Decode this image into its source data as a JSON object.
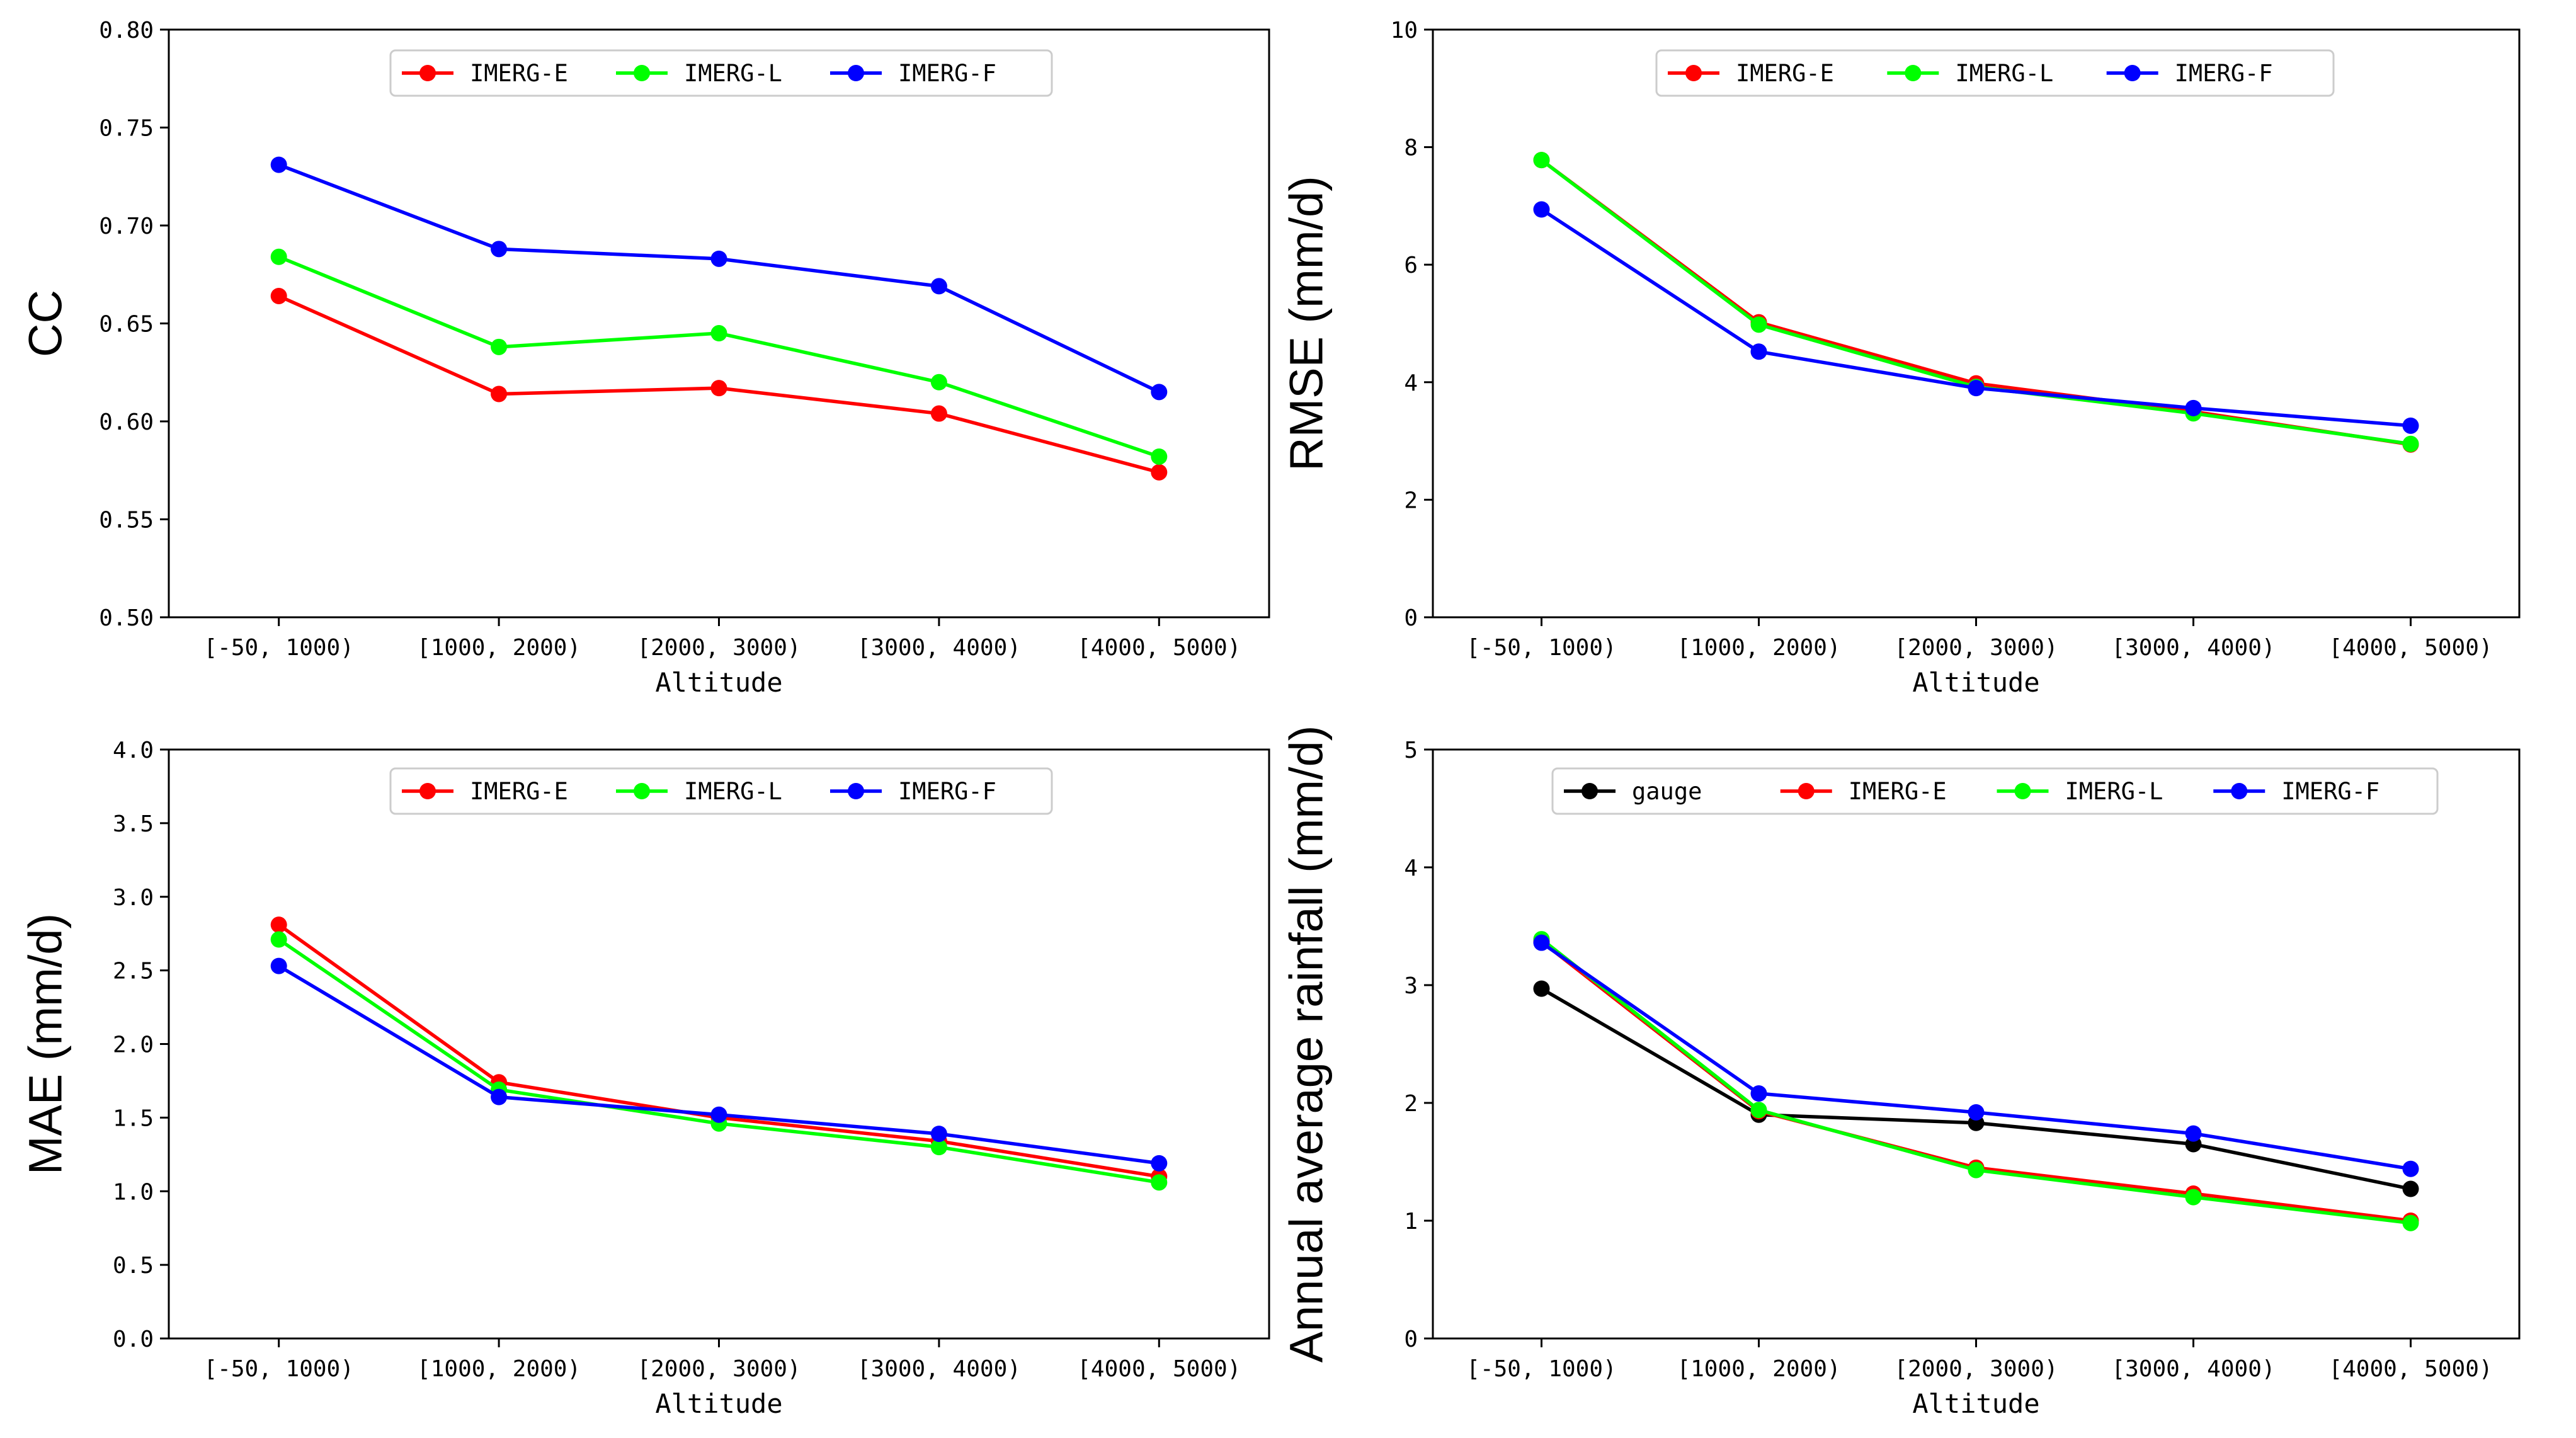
{
  "chart_data": [
    {
      "type": "line",
      "id": "cc",
      "title": "",
      "xlabel": "Altitude",
      "ylabel": "CC",
      "categories": [
        "[-50, 1000)",
        "[1000, 2000)",
        "[2000, 3000)",
        "[3000, 4000)",
        "[4000, 5000)"
      ],
      "ylim": [
        0.5,
        0.8
      ],
      "yticks": [
        "0.50",
        "0.55",
        "0.60",
        "0.65",
        "0.70",
        "0.75",
        "0.80"
      ],
      "legend_position": "top-center",
      "series": [
        {
          "name": "IMERG-E",
          "color": "#ff0000",
          "values": [
            0.664,
            0.614,
            0.617,
            0.604,
            0.574
          ]
        },
        {
          "name": "IMERG-L",
          "color": "#00ff00",
          "values": [
            0.684,
            0.638,
            0.645,
            0.62,
            0.582
          ]
        },
        {
          "name": "IMERG-F",
          "color": "#0000ff",
          "values": [
            0.731,
            0.688,
            0.683,
            0.669,
            0.615
          ]
        }
      ]
    },
    {
      "type": "line",
      "id": "rmse",
      "title": "",
      "xlabel": "Altitude",
      "ylabel": "RMSE (mm/d)",
      "categories": [
        "[-50, 1000)",
        "[1000, 2000)",
        "[2000, 3000)",
        "[3000, 4000)",
        "[4000, 5000)"
      ],
      "ylim": [
        0,
        10
      ],
      "yticks": [
        "0",
        "2",
        "4",
        "6",
        "8",
        "10"
      ],
      "legend_position": "top-center",
      "series": [
        {
          "name": "IMERG-E",
          "color": "#ff0000",
          "values": [
            7.78,
            5.02,
            3.98,
            3.5,
            2.94
          ]
        },
        {
          "name": "IMERG-L",
          "color": "#00ff00",
          "values": [
            7.78,
            4.98,
            3.92,
            3.47,
            2.95
          ]
        },
        {
          "name": "IMERG-F",
          "color": "#0000ff",
          "values": [
            6.94,
            4.52,
            3.9,
            3.56,
            3.26
          ]
        }
      ]
    },
    {
      "type": "line",
      "id": "mae",
      "title": "",
      "xlabel": "Altitude",
      "ylabel": "MAE (mm/d)",
      "categories": [
        "[-50, 1000)",
        "[1000, 2000)",
        "[2000, 3000)",
        "[3000, 4000)",
        "[4000, 5000)"
      ],
      "ylim": [
        0,
        4
      ],
      "yticks": [
        "0.0",
        "0.5",
        "1.0",
        "1.5",
        "2.0",
        "2.5",
        "3.0",
        "3.5",
        "4.0"
      ],
      "legend_position": "top-center",
      "series": [
        {
          "name": "IMERG-E",
          "color": "#ff0000",
          "values": [
            2.81,
            1.74,
            1.5,
            1.34,
            1.1
          ]
        },
        {
          "name": "IMERG-L",
          "color": "#00ff00",
          "values": [
            2.71,
            1.69,
            1.46,
            1.3,
            1.06
          ]
        },
        {
          "name": "IMERG-F",
          "color": "#0000ff",
          "values": [
            2.53,
            1.64,
            1.52,
            1.39,
            1.19
          ]
        }
      ]
    },
    {
      "type": "line",
      "id": "rainfall",
      "title": "",
      "xlabel": "Altitude",
      "ylabel": "Annual average rainfall (mm/d)",
      "categories": [
        "[-50, 1000)",
        "[1000, 2000)",
        "[2000, 3000)",
        "[3000, 4000)",
        "[4000, 5000)"
      ],
      "ylim": [
        0,
        5
      ],
      "yticks": [
        "0",
        "1",
        "2",
        "3",
        "4",
        "5"
      ],
      "legend_position": "top-center",
      "series": [
        {
          "name": "gauge",
          "color": "#000000",
          "values": [
            2.97,
            1.9,
            1.83,
            1.65,
            1.27
          ]
        },
        {
          "name": "IMERG-E",
          "color": "#ff0000",
          "values": [
            3.37,
            1.93,
            1.45,
            1.23,
            1.0
          ]
        },
        {
          "name": "IMERG-L",
          "color": "#00ff00",
          "values": [
            3.39,
            1.94,
            1.43,
            1.2,
            0.98
          ]
        },
        {
          "name": "IMERG-F",
          "color": "#0000ff",
          "values": [
            3.36,
            2.08,
            1.92,
            1.74,
            1.44
          ]
        }
      ]
    }
  ]
}
